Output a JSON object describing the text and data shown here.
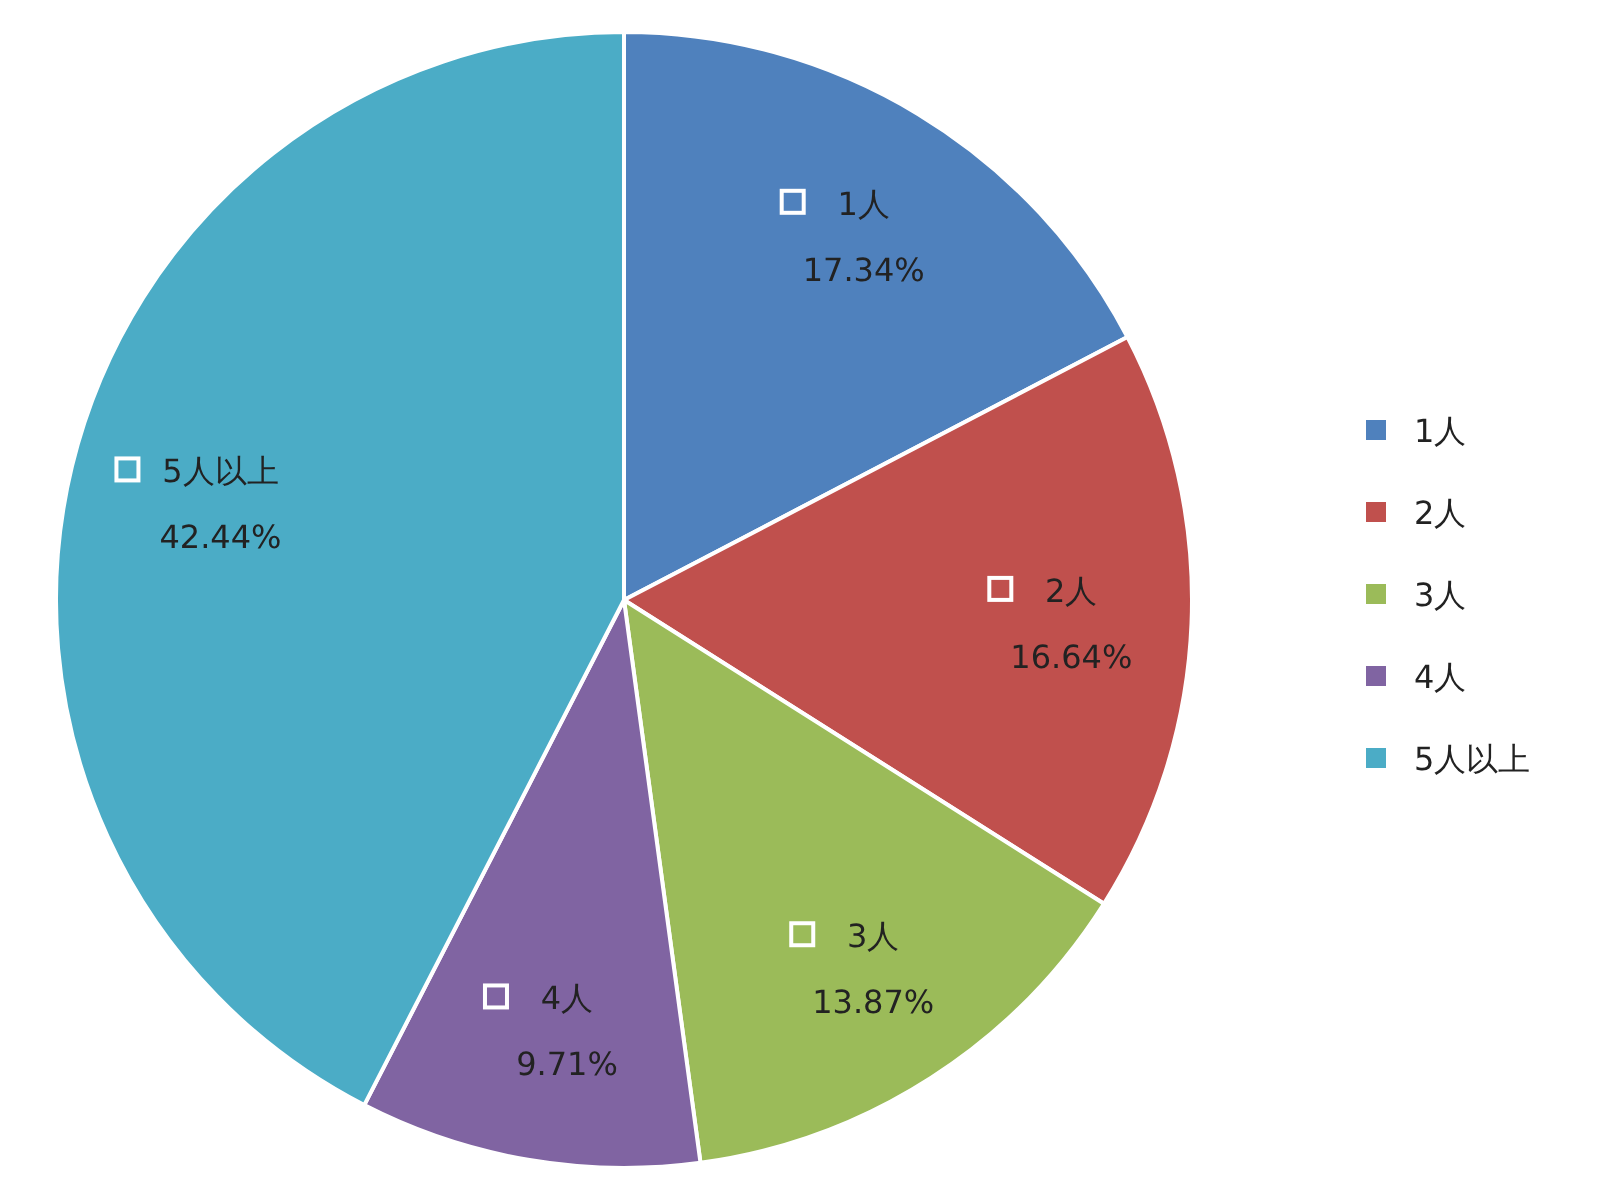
{
  "chart_data": {
    "type": "pie",
    "categories": [
      "1人",
      "2人",
      "3人",
      "4人",
      "5人以上"
    ],
    "values": [
      17.34,
      16.64,
      13.87,
      9.71,
      42.44
    ],
    "value_labels": [
      "17.34%",
      "16.64%",
      "13.87%",
      "9.71%",
      "42.44%"
    ],
    "colors": [
      "#4f81bd",
      "#c0504d",
      "#9bbb59",
      "#8064a2",
      "#4bacc6"
    ],
    "legend": "right"
  }
}
